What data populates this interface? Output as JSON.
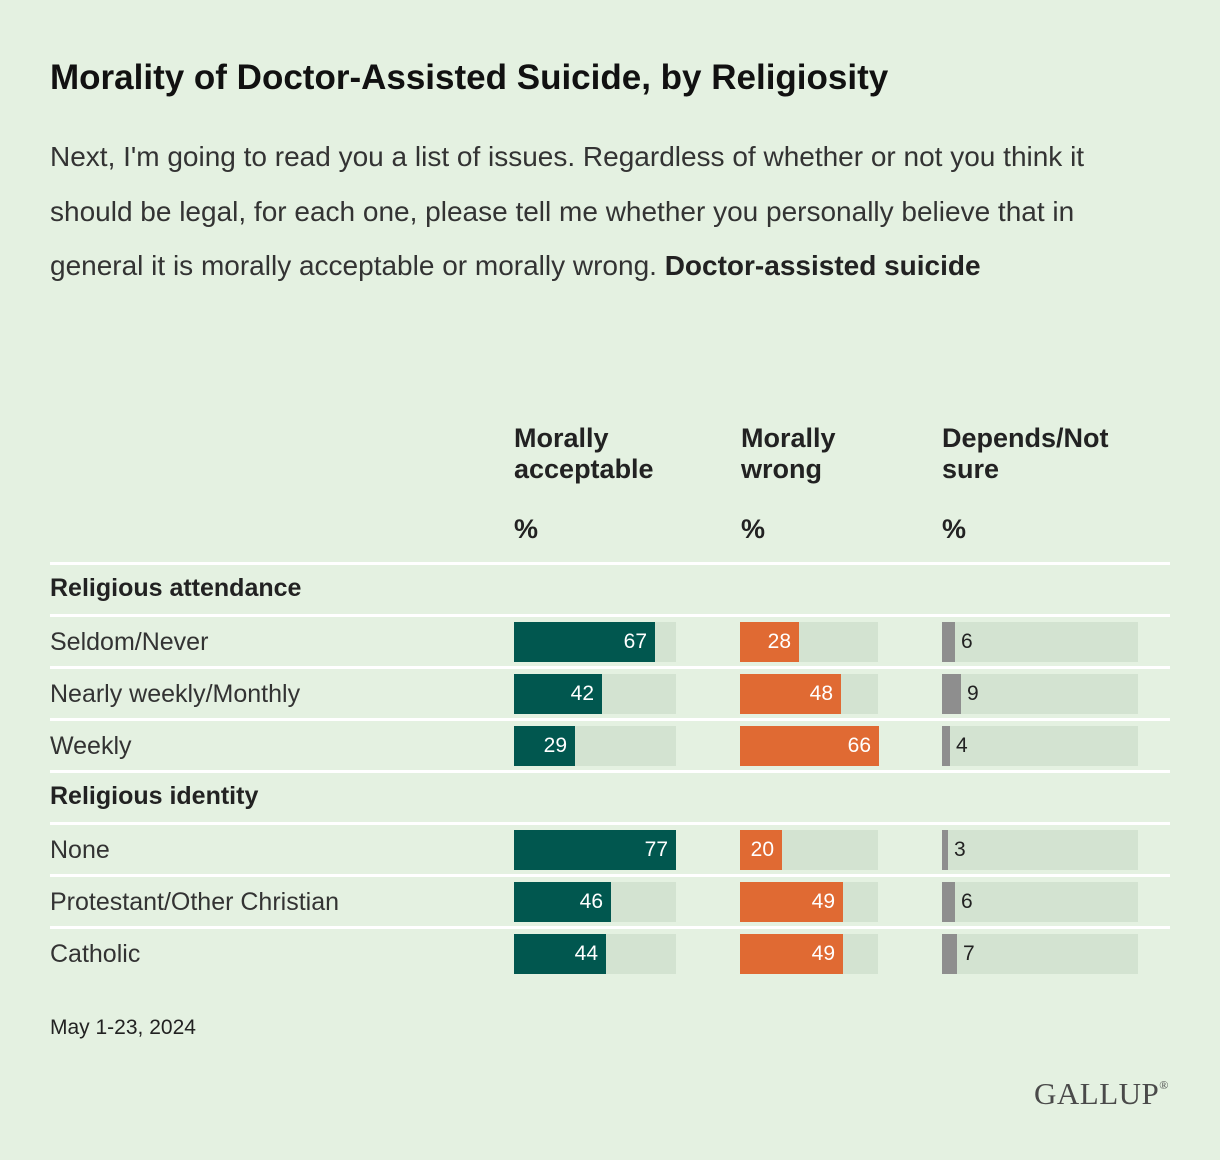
{
  "title": "Morality of Doctor-Assisted Suicide, by Religiosity",
  "subtitle_text": "Next, I'm going to read you a list of issues. Regardless of whether or not you think it should be legal, for each one, please tell me whether you personally believe that in general it is morally acceptable or morally wrong.",
  "subtitle_bold": "Doctor-assisted suicide",
  "columns": [
    {
      "key": "acceptable",
      "label_line1": "Morally",
      "label_line2": "acceptable",
      "unit": "%",
      "color": "#01574f"
    },
    {
      "key": "wrong",
      "label_line1": "Morally",
      "label_line2": "wrong",
      "unit": "%",
      "color": "#e06a33"
    },
    {
      "key": "depends",
      "label_line1": "Depends/Not",
      "label_line2": "sure",
      "unit": "%",
      "color": "#8e8e8e"
    }
  ],
  "footnote": "May 1-23, 2024",
  "logo_text": "GALLUP",
  "logo_mark": "®",
  "chart_data": {
    "type": "bar",
    "orientation": "horizontal",
    "value_range": [
      0,
      100
    ],
    "series": [
      {
        "name": "Morally acceptable",
        "color": "#01574f"
      },
      {
        "name": "Morally wrong",
        "color": "#e06a33"
      },
      {
        "name": "Depends/Not sure",
        "color": "#8e8e8e"
      }
    ],
    "groups": [
      {
        "name": "Religious attendance",
        "rows": [
          {
            "label": "Seldom/Never",
            "values": [
              67,
              28,
              6
            ]
          },
          {
            "label": "Nearly weekly/Monthly",
            "values": [
              42,
              48,
              9
            ]
          },
          {
            "label": "Weekly",
            "values": [
              29,
              66,
              4
            ]
          }
        ]
      },
      {
        "name": "Religious identity",
        "rows": [
          {
            "label": "None",
            "values": [
              77,
              20,
              3
            ]
          },
          {
            "label": "Protestant/Other Christian",
            "values": [
              46,
              49,
              6
            ]
          },
          {
            "label": "Catholic",
            "values": [
              44,
              49,
              7
            ]
          }
        ]
      }
    ]
  }
}
